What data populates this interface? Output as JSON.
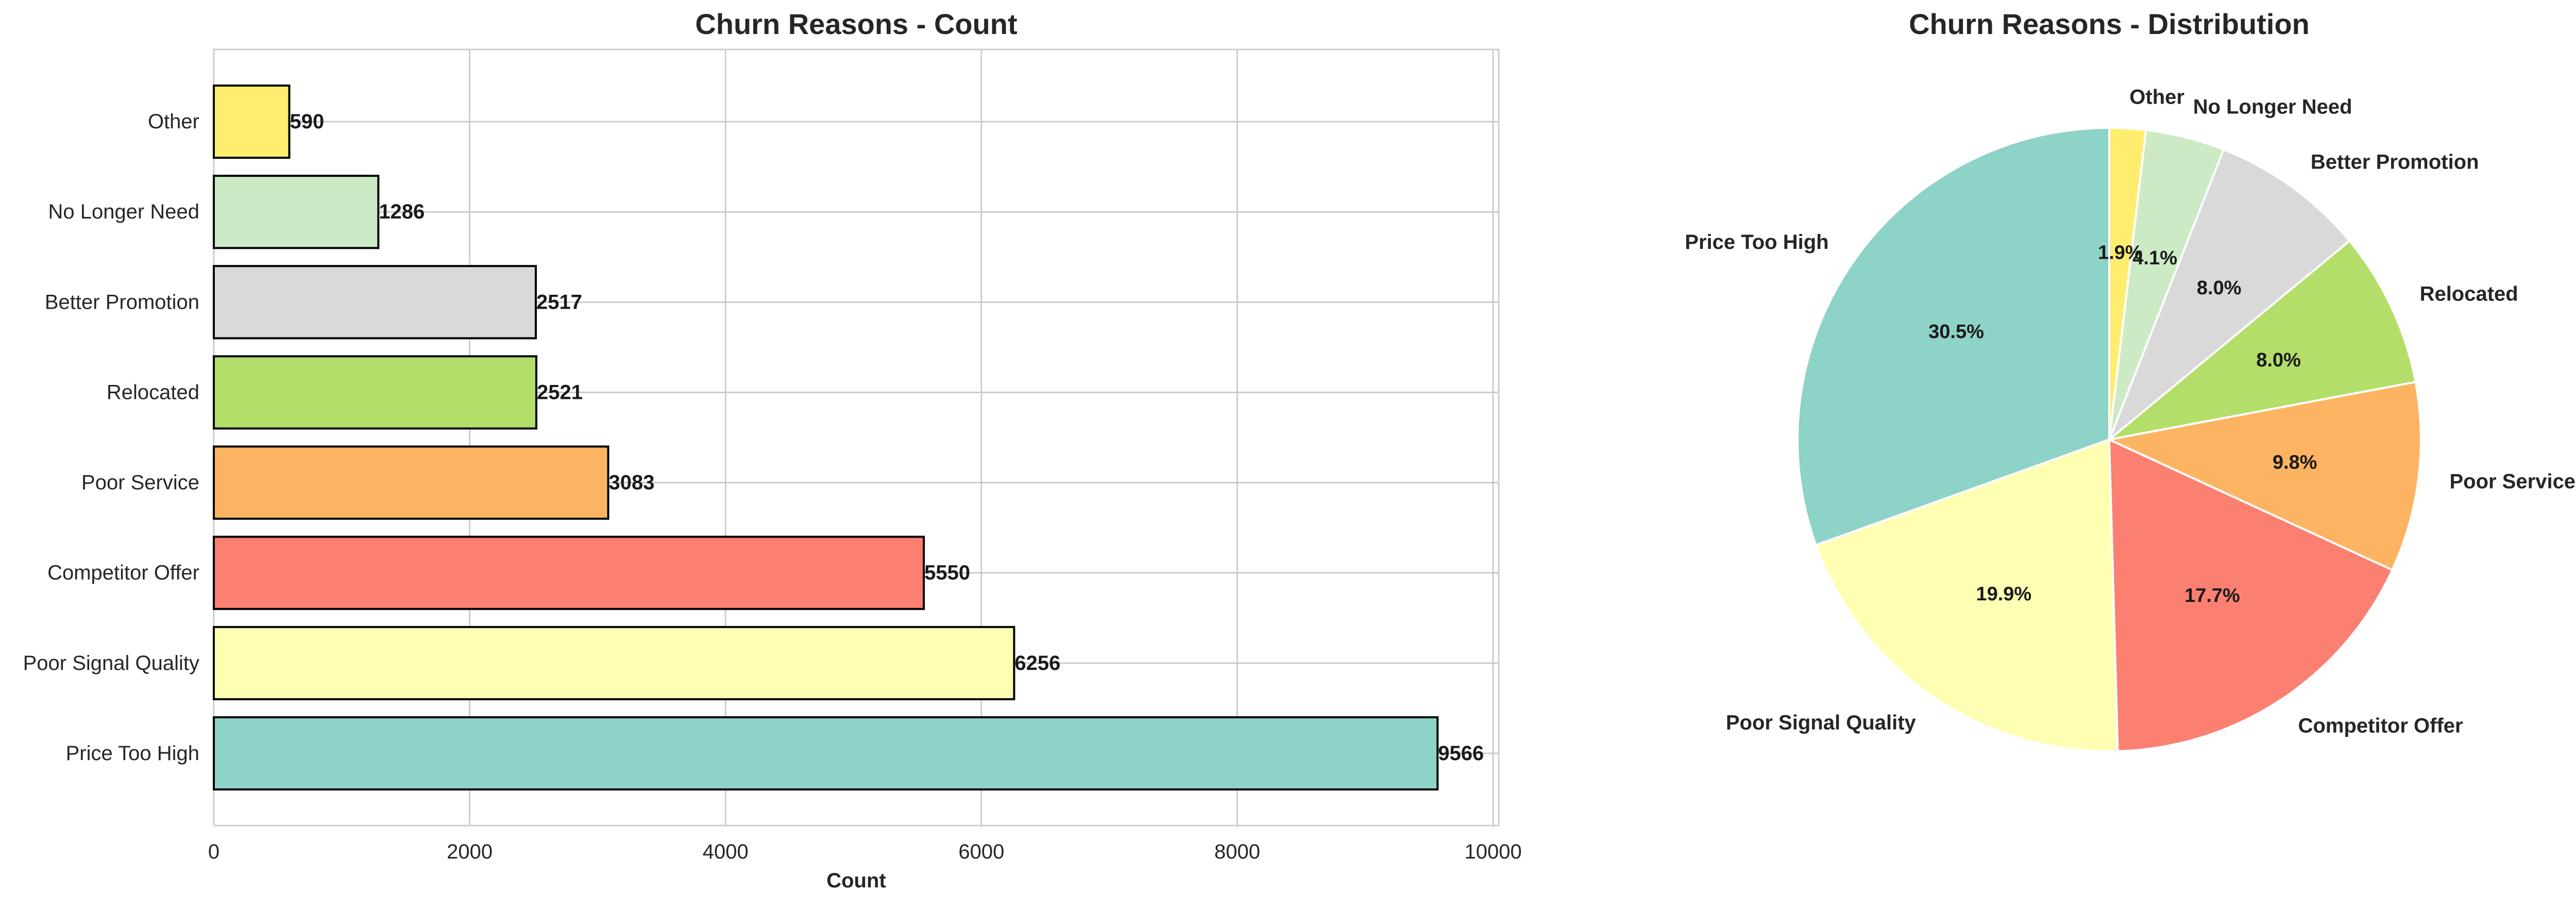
{
  "chart_data": [
    {
      "type": "bar",
      "orientation": "horizontal",
      "title": "Churn Reasons - Count",
      "xlabel": "Count",
      "ylabel": "",
      "categories": [
        "Price Too High",
        "Poor Signal Quality",
        "Competitor Offer",
        "Poor Service",
        "Relocated",
        "Better Promotion",
        "No Longer Need",
        "Other"
      ],
      "values": [
        9566,
        6256,
        5550,
        3083,
        2521,
        2517,
        1286,
        590
      ],
      "data_labels": [
        "9566",
        "6256",
        "5550",
        "3083",
        "2521",
        "2517",
        "1286",
        "590"
      ],
      "colors": [
        "#8dd3c7",
        "#ffffb3",
        "#fb8072",
        "#fdb462",
        "#b3de69",
        "#d9d9d9",
        "#ccebc5",
        "#ffed6f"
      ],
      "edge_color": "#000000",
      "xlim": [
        0,
        10044
      ],
      "xticks": [
        0,
        2000,
        4000,
        6000,
        8000,
        10000
      ],
      "xtick_labels": [
        "0",
        "2000",
        "4000",
        "6000",
        "8000",
        "10000"
      ],
      "grid": true
    },
    {
      "type": "pie",
      "title": "Churn Reasons - Distribution",
      "labels": [
        "Price Too High",
        "Poor Signal Quality",
        "Competitor Offer",
        "Poor Service",
        "Relocated",
        "Better Promotion",
        "No Longer Need",
        "Other"
      ],
      "values": [
        9566,
        6256,
        5550,
        3083,
        2521,
        2517,
        1286,
        590
      ],
      "pct_labels": [
        "30.5%",
        "19.9%",
        "17.7%",
        "9.8%",
        "8.0%",
        "8.0%",
        "4.1%",
        "1.9%"
      ],
      "colors": [
        "#8dd3c7",
        "#ffffb3",
        "#fb8072",
        "#fdb462",
        "#b3de69",
        "#d9d9d9",
        "#ccebc5",
        "#ffed6f"
      ],
      "start_angle": 90,
      "direction": "counterclockwise",
      "edge_color": "#ffffff"
    }
  ]
}
